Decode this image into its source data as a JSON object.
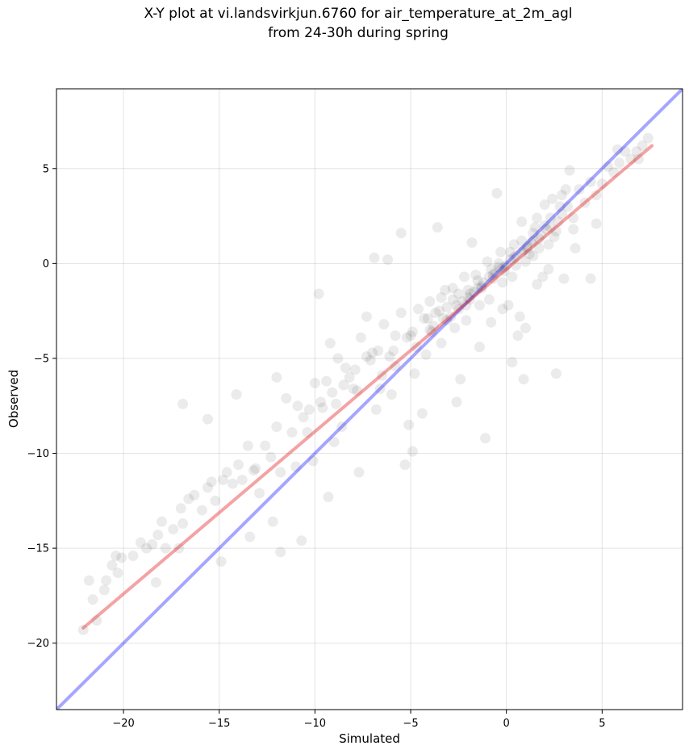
{
  "chart_data": {
    "type": "scatter",
    "title_lines": [
      "X-Y plot at vi.landsvirkjun.6760 for air_temperature_at_2m_agl",
      "from 24-30h during spring"
    ],
    "xlabel": "Simulated",
    "ylabel": "Observed",
    "xlim": [
      -23.5,
      9.2
    ],
    "ylim": [
      -23.5,
      9.2
    ],
    "xticks": [
      -20,
      -15,
      -10,
      -5,
      0,
      5
    ],
    "yticks": [
      -20,
      -15,
      -10,
      -5,
      0,
      5
    ],
    "xtick_labels": [
      "−20",
      "−15",
      "−10",
      "−5",
      "0",
      "5"
    ],
    "ytick_labels": [
      "−20",
      "−15",
      "−10",
      "−5",
      "0",
      "5"
    ],
    "grid": true,
    "point_color": "#000000",
    "one_to_one_line": {
      "x": [
        -23.5,
        9.2
      ],
      "y": [
        -23.5,
        9.2
      ],
      "color": "#0000ff"
    },
    "fit_line": {
      "x": [
        -22.1,
        7.6
      ],
      "y": [
        -19.2,
        6.2
      ],
      "color": "#e31a1c"
    },
    "points": {
      "x": [
        -22.1,
        -21.8,
        -21.6,
        -21.4,
        -21.0,
        -20.9,
        -20.6,
        -20.4,
        -20.3,
        -20.1,
        -19.5,
        -19.1,
        -18.8,
        -18.5,
        -18.2,
        -18.0,
        -17.8,
        -17.4,
        -17.0,
        -16.9,
        -16.6,
        -16.3,
        -15.9,
        -15.6,
        -15.4,
        -15.2,
        -14.8,
        -14.6,
        -14.3,
        -14.0,
        -13.8,
        -13.5,
        -13.2,
        -12.9,
        -12.6,
        -12.3,
        -12.0,
        -11.8,
        -11.5,
        -11.2,
        -10.9,
        -10.6,
        -10.3,
        -10.0,
        -9.7,
        -9.4,
        -9.1,
        -8.8,
        -8.5,
        -8.2,
        -7.9,
        -7.6,
        -7.3,
        -7.0,
        -6.7,
        -6.4,
        -6.1,
        -5.8,
        -5.5,
        -5.2,
        -4.9,
        -4.6,
        -4.3,
        -4.0,
        -3.7,
        -3.4,
        -3.1,
        -2.8,
        -2.5,
        -2.2,
        -1.9,
        -1.6,
        -1.3,
        -1.0,
        -0.7,
        -0.4,
        -0.1,
        0.2,
        0.5,
        0.8,
        1.1,
        1.4,
        1.7,
        2.0,
        2.3,
        2.6,
        2.9,
        3.2,
        3.5,
        3.8,
        4.1,
        4.4,
        4.7,
        5.0,
        5.3,
        5.6,
        5.9,
        6.2,
        6.5,
        6.8,
        7.1,
        7.4,
        -16.9,
        -15.6,
        -14.1,
        -13.4,
        -9.8,
        -9.2,
        -7.3,
        -6.9,
        -5.5,
        -4.9,
        -3.2,
        -2.6,
        -1.1,
        -0.5,
        0.3,
        0.9,
        1.5,
        2.6,
        3.3,
        4.4,
        -12.2,
        -11.8,
        -10.7,
        -9.3,
        -8.4,
        -6.2,
        -5.1,
        -4.0,
        -2.4,
        -1.8,
        -0.2,
        0.6,
        1.2,
        1.9,
        2.4,
        3.0,
        -18.3,
        -17.1,
        -14.9,
        -13.1,
        -12.0,
        -10.1,
        -8.9,
        -7.7,
        -6.6,
        -5.3,
        -4.4,
        -3.6,
        -2.1,
        -1.4,
        -0.8,
        0.1,
        0.7,
        1.0,
        1.6,
        2.2,
        2.8,
        3.6,
        4.7,
        5.8,
        6.9,
        -2.9,
        -2.3,
        -1.7,
        -1.2,
        -0.6,
        -0.3,
        0.0,
        0.4,
        0.8,
        1.3,
        1.8,
        -3.8,
        -3.3,
        -2.6,
        -2.0,
        -1.5,
        -0.9,
        -0.4,
        0.2,
        0.9,
        1.4,
        2.1,
        2.7,
        -7.8,
        -6.5,
        -5.8,
        -4.7,
        -3.9,
        -3.1,
        -2.5,
        -1.9,
        -1.3,
        -0.7,
        -0.1,
        0.5,
        1.1,
        1.7,
        2.3,
        -9.6,
        -8.6,
        -7.1,
        -6.0,
        -5.0,
        -4.2,
        -3.5,
        -2.7,
        -2.0,
        -1.4,
        -0.8,
        -0.2,
        0.4,
        1.0,
        1.6,
        2.2,
        2.9,
        3.5,
        -11.0,
        -10.4,
        -9.0,
        -8.0,
        -6.8,
        -5.9,
        -4.8,
        -4.1,
        -3.4,
        -2.8,
        -2.1,
        -1.5,
        -0.9,
        -0.3,
        0.3,
        0.8,
        1.4,
        2.0,
        2.5,
        3.1
      ],
      "y": [
        -19.3,
        -16.7,
        -17.7,
        -18.8,
        -17.2,
        -16.7,
        -15.9,
        -15.4,
        -16.3,
        -15.5,
        -15.4,
        -14.7,
        -15.0,
        -14.8,
        -14.3,
        -13.6,
        -15.0,
        -14.0,
        -12.9,
        -13.7,
        -12.4,
        -12.2,
        -13.0,
        -11.8,
        -11.5,
        -12.5,
        -11.4,
        -11.0,
        -11.6,
        -10.6,
        -11.4,
        -9.6,
        -10.9,
        -12.1,
        -9.6,
        -10.2,
        -8.6,
        -11.0,
        -7.1,
        -8.9,
        -7.5,
        -8.1,
        -7.7,
        -6.3,
        -7.3,
        -6.2,
        -6.8,
        -5.0,
        -6.4,
        -6.0,
        -5.6,
        -3.9,
        -4.9,
        -4.7,
        -4.6,
        -3.2,
        -4.9,
        -3.8,
        -2.6,
        -3.9,
        -3.6,
        -2.4,
        -2.9,
        -2.0,
        -2.6,
        -1.8,
        -2.3,
        -1.3,
        -1.6,
        -0.7,
        -1.6,
        -0.6,
        -1.3,
        0.1,
        -0.8,
        0.0,
        -0.4,
        0.6,
        -0.1,
        1.2,
        0.8,
        1.6,
        0.8,
        2.0,
        2.4,
        1.7,
        2.6,
        3.0,
        2.4,
        3.9,
        3.2,
        4.3,
        3.6,
        4.2,
        5.1,
        4.8,
        5.3,
        5.9,
        5.5,
        5.9,
        6.2,
        6.6,
        -7.4,
        -8.2,
        -6.9,
        -14.4,
        -1.6,
        -4.2,
        -2.8,
        0.3,
        1.6,
        -9.9,
        -1.4,
        -7.3,
        -9.2,
        3.7,
        -5.2,
        -6.1,
        1.9,
        -5.8,
        4.9,
        -0.8,
        -13.6,
        -15.2,
        -14.6,
        -12.3,
        -5.5,
        0.2,
        -8.5,
        -3.5,
        -6.1,
        1.1,
        -2.4,
        -3.8,
        0.5,
        -0.7,
        3.4,
        -0.8,
        -16.8,
        -15.0,
        -15.7,
        -10.8,
        -6.0,
        -10.4,
        -7.4,
        -11.0,
        -6.6,
        -10.6,
        -7.9,
        1.9,
        -2.2,
        -4.4,
        -3.1,
        -2.2,
        -2.8,
        -3.4,
        -1.1,
        -0.3,
        3.0,
        0.8,
        2.1,
        6.0,
        5.5,
        -2.8,
        -2.0,
        -1.5,
        -1.0,
        -0.5,
        -0.3,
        -0.1,
        0.3,
        0.6,
        1.1,
        1.5,
        -3.3,
        -2.9,
        -2.2,
        -1.8,
        -1.3,
        -0.7,
        -0.2,
        0.2,
        0.7,
        1.2,
        1.8,
        2.2,
        -6.7,
        -5.9,
        -5.4,
        -4.4,
        -3.6,
        -3.0,
        -2.4,
        -1.9,
        -1.2,
        -0.6,
        -0.2,
        0.4,
        0.9,
        1.3,
        1.9,
        -7.6,
        -8.6,
        -5.1,
        -6.9,
        -3.8,
        -4.8,
        -2.5,
        -3.4,
        -1.4,
        -2.2,
        -0.3,
        -1.0,
        1.0,
        0.1,
        2.4,
        1.0,
        3.6,
        1.8,
        -10.7,
        -8.9,
        -9.4,
        -6.6,
        -7.7,
        -4.6,
        -5.8,
        -2.9,
        -4.2,
        -1.9,
        -3.0,
        -0.9,
        -1.9,
        0.6,
        -0.7,
        2.2,
        0.4,
        3.1,
        1.4,
        3.9
      ]
    }
  }
}
